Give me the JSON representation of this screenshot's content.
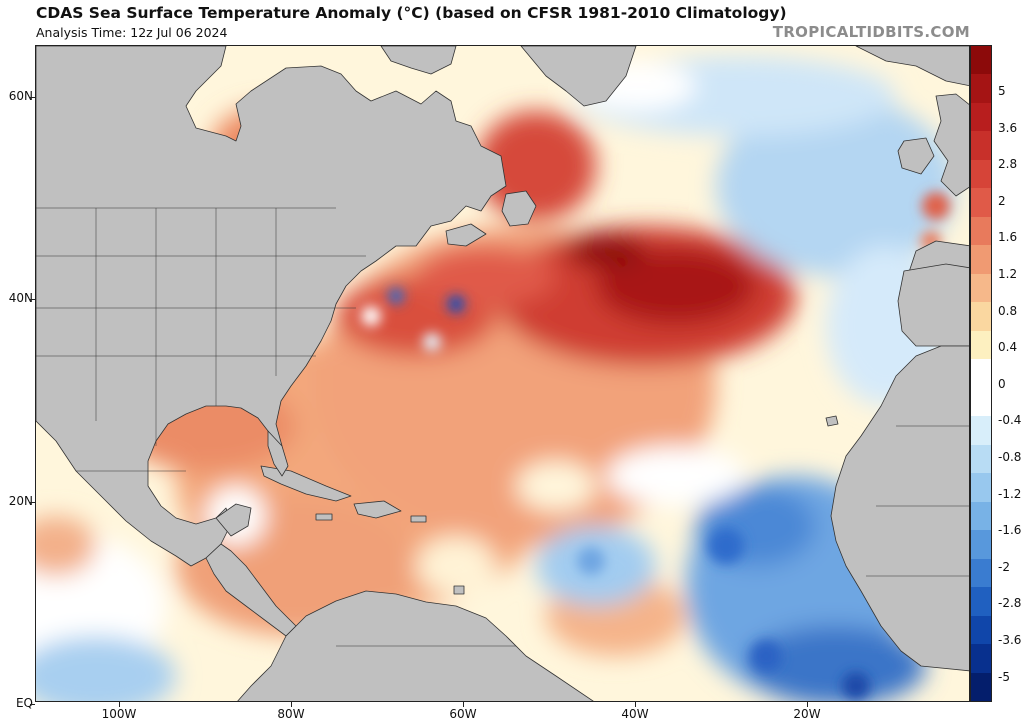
{
  "header": {
    "title": "CDAS Sea Surface Temperature Anomaly (°C) (based on CFSR 1981-2010 Climatology)",
    "analysis_time": "Analysis Time: 12z Jul 06 2024",
    "brand": "TROPICALTIDBITS.COM"
  },
  "axes": {
    "lat_labels": [
      "60N",
      "40N",
      "20N",
      "EQ"
    ],
    "lon_labels": [
      "100W",
      "80W",
      "60W",
      "40W",
      "20W"
    ]
  },
  "colorbar": {
    "labels": [
      "5",
      "3.6",
      "2.8",
      "2",
      "1.6",
      "1.2",
      "0.8",
      "0.4",
      "0",
      "-0.4",
      "-0.8",
      "-1.2",
      "-1.6",
      "-2",
      "-2.8",
      "-3.6",
      "-5"
    ],
    "colors": [
      "#8c0a0a",
      "#a51414",
      "#b81e1e",
      "#c8302a",
      "#d64438",
      "#e05a48",
      "#e87a5c",
      "#f09a72",
      "#f6b88a",
      "#fad7a0",
      "#fdf0c0",
      "#ffffff",
      "#ffffff",
      "#d8eefa",
      "#b8dcf4",
      "#98c8ee",
      "#78b2e6",
      "#5898dc",
      "#3a7cd0",
      "#2060c0",
      "#1046aa",
      "#08308e",
      "#041e6c"
    ]
  },
  "colors": {
    "land": "#c0c0c0",
    "ocean_neutral": "#ffffff",
    "warm_strong": "#a51414",
    "warm_moderate": "#e87a5c",
    "cool_moderate": "#78b2e6"
  }
}
